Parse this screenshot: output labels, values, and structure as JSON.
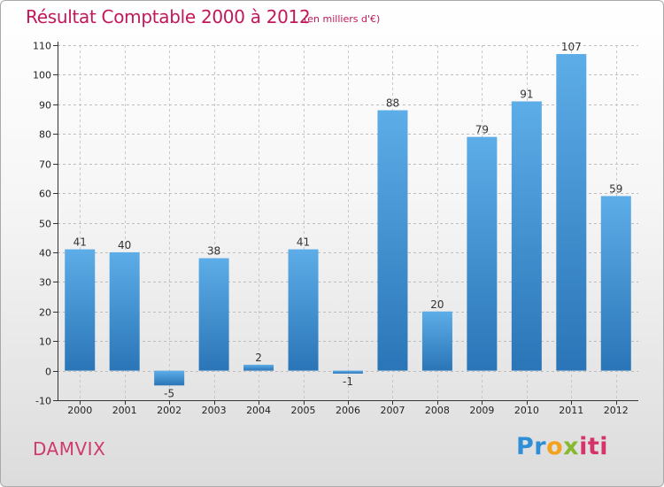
{
  "title": "Résultat Comptable 2000 à 2012",
  "subtitle": "(en milliers d'€)",
  "commune": "DAMVIX",
  "brand": {
    "p1": "Pr",
    "p2": "o",
    "p3": "x",
    "p4": "iti"
  },
  "colors": {
    "title": "#c2185b",
    "bar_top": "#5dade8",
    "bar_bottom": "#2a75b7"
  },
  "chart_data": {
    "type": "bar",
    "title": "Résultat Comptable 2000 à 2012",
    "xlabel": "",
    "ylabel": "en milliers d'€",
    "categories": [
      "2000",
      "2001",
      "2002",
      "2003",
      "2004",
      "2005",
      "2006",
      "2007",
      "2008",
      "2009",
      "2010",
      "2011",
      "2012"
    ],
    "values": [
      41,
      40,
      -5,
      38,
      2,
      41,
      -1,
      88,
      20,
      79,
      91,
      107,
      59
    ],
    "ylim": [
      -10,
      110
    ],
    "yticks": [
      -10,
      0,
      10,
      20,
      30,
      40,
      50,
      60,
      70,
      80,
      90,
      100,
      110
    ],
    "grid": true,
    "legend": "none"
  }
}
